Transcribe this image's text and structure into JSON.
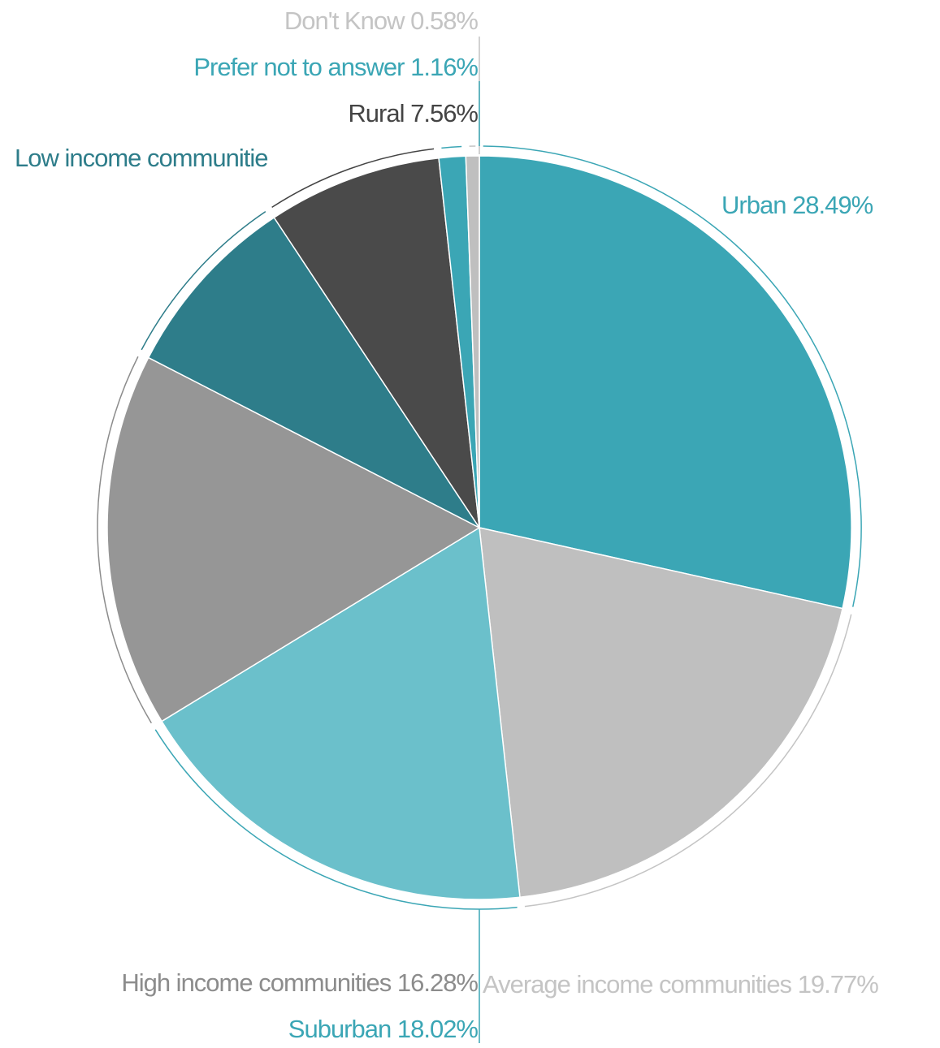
{
  "chart_data": {
    "type": "pie",
    "categories": [
      "Urban",
      "Average income communities",
      "Suburban",
      "High income communities",
      "Low income communitie",
      "Rural",
      "Prefer not to answer",
      "Don't Know"
    ],
    "values": [
      28.49,
      19.77,
      18.02,
      16.28,
      8.14,
      7.56,
      1.16,
      0.58
    ],
    "value_labels": [
      "28.49%",
      "19.77%",
      "18.02%",
      "16.28%",
      null,
      "7.56%",
      "1.16%",
      "0.58%"
    ],
    "colors": [
      "#3ba6b5",
      "#bfbfbf",
      "#6bc0cb",
      "#969696",
      "#2e7d8a",
      "#4a4a4a",
      "#3ba6b5",
      "#bfbfbf"
    ],
    "label_colors": [
      "#3ba6b5",
      "#c4c4c4",
      "#3ba6b5",
      "#8c8c8c",
      "#2e7d8a",
      "#444444",
      "#3ba6b5",
      "#c4c4c4"
    ]
  }
}
